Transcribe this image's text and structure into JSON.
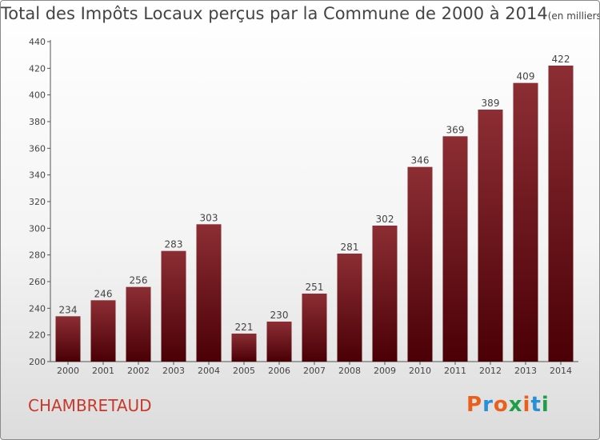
{
  "header": {
    "title": "Total des Impôts Locaux perçus par la Commune de 2000 à 2014",
    "unit": "(en milliers d'€)"
  },
  "footer": {
    "commune": "CHAMBRETAUD",
    "logo": [
      "P",
      "r",
      "o",
      "x",
      "i",
      "t",
      "i"
    ],
    "logo_colors": [
      "#e8601c",
      "#2b8fd6",
      "#e8601c",
      "#1f9e4a",
      "#e8601c",
      "#2b8fd6",
      "#1f9e4a"
    ]
  },
  "chart_data": {
    "type": "bar",
    "title": "Total des Impôts Locaux perçus par la Commune de 2000 à 2014",
    "xlabel": "",
    "ylabel": "",
    "categories": [
      "2000",
      "2001",
      "2002",
      "2003",
      "2004",
      "2005",
      "2006",
      "2007",
      "2008",
      "2009",
      "2010",
      "2011",
      "2012",
      "2013",
      "2014"
    ],
    "values": [
      234,
      246,
      256,
      283,
      303,
      221,
      230,
      251,
      281,
      302,
      346,
      369,
      389,
      409,
      422
    ],
    "ylim": [
      200,
      440
    ],
    "yticks": [
      200,
      220,
      240,
      260,
      280,
      300,
      320,
      340,
      360,
      380,
      400,
      420,
      440
    ],
    "grid": false,
    "bar_color": "#6e1015"
  }
}
